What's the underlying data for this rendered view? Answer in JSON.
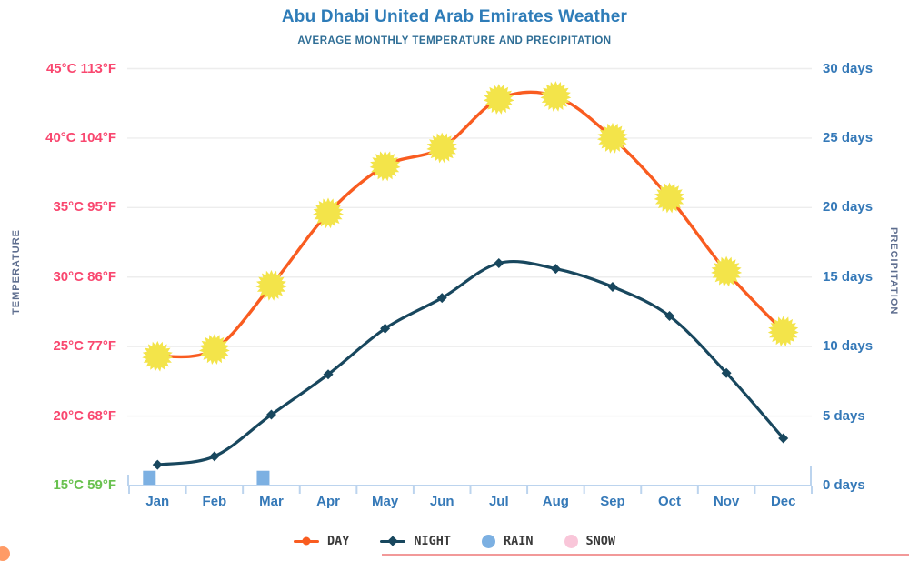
{
  "header": {
    "title": "Abu Dhabi United Arab Emirates Weather",
    "subtitle": "AVERAGE MONTHLY TEMPERATURE AND PRECIPITATION"
  },
  "temperature_axis": {
    "title": "TEMPERATURE",
    "ticks": [
      {
        "label": "45°C 113°F",
        "value": 45,
        "color": "#f9476f"
      },
      {
        "label": "40°C 104°F",
        "value": 40,
        "color": "#f9476f"
      },
      {
        "label": "35°C 95°F",
        "value": 35,
        "color": "#f9476f"
      },
      {
        "label": "30°C 86°F",
        "value": 30,
        "color": "#f9476f"
      },
      {
        "label": "25°C 77°F",
        "value": 25,
        "color": "#f9476f"
      },
      {
        "label": "20°C 68°F",
        "value": 20,
        "color": "#f9476f"
      },
      {
        "label": "15°C 59°F",
        "value": 15,
        "color": "#68c14e"
      }
    ]
  },
  "precipitation_axis": {
    "title": "PRECIPITATION",
    "ticks": [
      {
        "label": "30 days",
        "value": 30
      },
      {
        "label": "25 days",
        "value": 25
      },
      {
        "label": "20 days",
        "value": 20
      },
      {
        "label": "15 days",
        "value": 15
      },
      {
        "label": "10 days",
        "value": 10
      },
      {
        "label": "5 days",
        "value": 5
      },
      {
        "label": "0 days",
        "value": 0
      }
    ]
  },
  "legend": [
    {
      "label": "DAY",
      "marker": "line-dot",
      "color": "#f95c20"
    },
    {
      "label": "NIGHT",
      "marker": "line-diamond",
      "color": "#18475e"
    },
    {
      "label": "RAIN",
      "marker": "circle",
      "color": "#7cb0e2"
    },
    {
      "label": "SNOW",
      "marker": "circle",
      "color": "#f9c6d9"
    }
  ],
  "colors": {
    "title_blue": "#2e7cb8",
    "axis_blue": "#3579b8",
    "temp_pink": "#f9476f",
    "temp_green": "#68c14e",
    "day_orange": "#f95c20",
    "sun_yellow": "#f3e44a",
    "night_navy": "#18475e",
    "rain_blue": "#7cb0e2",
    "snow_pink": "#f9c6d9",
    "gridline": "#ededed",
    "axis_line": "#bcd4ee"
  },
  "chart_data": {
    "type": "line",
    "title": "Abu Dhabi United Arab Emirates Weather",
    "subtitle": "AVERAGE MONTHLY TEMPERATURE AND PRECIPITATION",
    "categories": [
      "Jan",
      "Feb",
      "Mar",
      "Apr",
      "May",
      "Jun",
      "Jul",
      "Aug",
      "Sep",
      "Oct",
      "Nov",
      "Dec"
    ],
    "series": [
      {
        "name": "DAY",
        "type": "line",
        "axis": "temperature",
        "unit": "°C",
        "marker": "sun",
        "color": "#f95c20",
        "values": [
          24.3,
          24.8,
          29.4,
          34.6,
          38.0,
          39.3,
          42.8,
          43.0,
          40.0,
          35.7,
          30.4,
          26.1
        ]
      },
      {
        "name": "NIGHT",
        "type": "line",
        "axis": "temperature",
        "unit": "°C",
        "marker": "diamond",
        "color": "#18475e",
        "values": [
          16.5,
          17.1,
          20.1,
          23.0,
          26.3,
          28.5,
          31.0,
          30.6,
          29.3,
          27.2,
          23.1,
          18.4
        ]
      },
      {
        "name": "RAIN",
        "type": "bar",
        "axis": "precipitation",
        "unit": "days",
        "color": "#7cb0e2",
        "values": [
          1,
          0,
          1,
          0,
          0,
          0,
          0,
          0,
          0,
          0,
          0,
          0
        ]
      },
      {
        "name": "SNOW",
        "type": "bar",
        "axis": "precipitation",
        "unit": "days",
        "color": "#f9c6d9",
        "values": [
          0,
          0,
          0,
          0,
          0,
          0,
          0,
          0,
          0,
          0,
          0,
          0
        ]
      }
    ],
    "temperature_axis_range": [
      15,
      45
    ],
    "precipitation_axis_range": [
      0,
      30
    ],
    "grid": true,
    "legend_position": "bottom"
  }
}
